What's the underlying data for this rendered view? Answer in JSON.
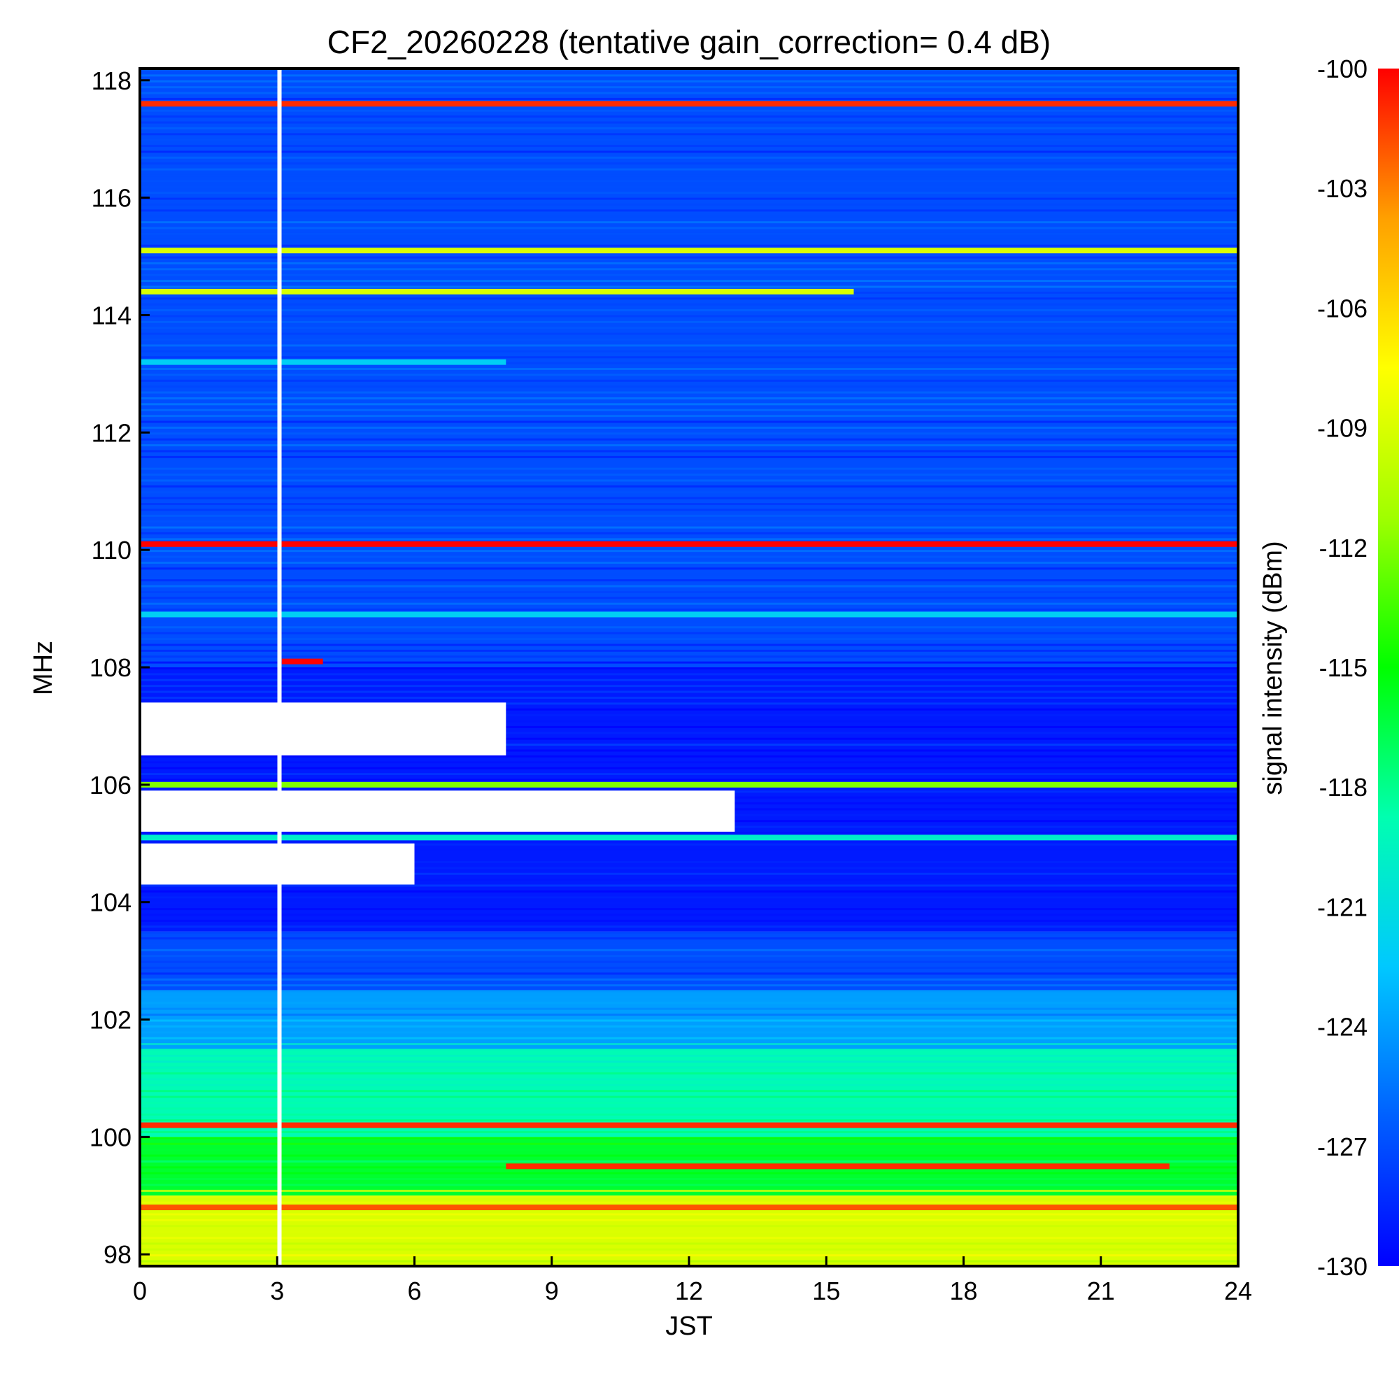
{
  "chart_data": {
    "type": "heatmap",
    "title": "CF2_20260228 (tentative gain_correction=  0.4 dB)",
    "xlabel": "JST",
    "ylabel": "MHz",
    "colorbar_label": "signal intensity (dBm)",
    "xlim": [
      0,
      24
    ],
    "ylim": [
      97.8,
      118.2
    ],
    "clim": [
      -130,
      -100
    ],
    "x_ticks": [
      "0",
      "3",
      "6",
      "9",
      "12",
      "15",
      "18",
      "21",
      "24"
    ],
    "y_ticks": [
      "98",
      "100",
      "102",
      "104",
      "106",
      "108",
      "110",
      "112",
      "114",
      "116",
      "118"
    ],
    "colorbar_ticks": [
      "-100",
      "-103",
      "-106",
      "-109",
      "-112",
      "-115",
      "-118",
      "-121",
      "-124",
      "-127",
      "-130"
    ],
    "colormap": [
      "#0000ff",
      "#0060ff",
      "#00c8ff",
      "#00ffb0",
      "#00ff00",
      "#a0ff00",
      "#ffff00",
      "#ffa000",
      "#ff0000"
    ],
    "background_levels": [
      {
        "mhz_from": 108.0,
        "mhz_to": 118.2,
        "dbm": -127
      },
      {
        "mhz_from": 103.5,
        "mhz_to": 108.0,
        "dbm": -129
      },
      {
        "mhz_from": 102.5,
        "mhz_to": 103.5,
        "dbm": -127
      },
      {
        "mhz_from": 101.5,
        "mhz_to": 102.5,
        "dbm": -124
      },
      {
        "mhz_from": 100.0,
        "mhz_to": 101.5,
        "dbm": -119
      },
      {
        "mhz_from": 99.0,
        "mhz_to": 100.0,
        "dbm": -116
      },
      {
        "mhz_from": 97.8,
        "mhz_to": 99.0,
        "dbm": -109
      }
    ],
    "stations": [
      {
        "mhz": 117.6,
        "dbm": -101,
        "jst_from": 0,
        "jst_to": 24
      },
      {
        "mhz": 115.1,
        "dbm": -109,
        "jst_from": 0,
        "jst_to": 24
      },
      {
        "mhz": 114.4,
        "dbm": -109,
        "jst_from": 0,
        "jst_to": 15.6
      },
      {
        "mhz": 113.2,
        "dbm": -122,
        "jst_from": 0,
        "jst_to": 8
      },
      {
        "mhz": 110.1,
        "dbm": -100,
        "jst_from": 0,
        "jst_to": 24
      },
      {
        "mhz": 108.9,
        "dbm": -122,
        "jst_from": 0,
        "jst_to": 24
      },
      {
        "mhz": 108.1,
        "dbm": -100,
        "jst_from": 3.1,
        "jst_to": 4
      },
      {
        "mhz": 106.0,
        "dbm": -112,
        "jst_from": 0,
        "jst_to": 24
      },
      {
        "mhz": 105.1,
        "dbm": -120,
        "jst_from": 0,
        "jst_to": 24
      },
      {
        "mhz": 100.2,
        "dbm": -101,
        "jst_from": 0,
        "jst_to": 24
      },
      {
        "mhz": 99.5,
        "dbm": -101,
        "jst_from": 8,
        "jst_to": 22.5
      },
      {
        "mhz": 98.8,
        "dbm": -102,
        "jst_from": 0,
        "jst_to": 24
      }
    ],
    "saturated_regions": [
      {
        "mhz_from": 106.5,
        "mhz_to": 107.4,
        "jst_from": 0,
        "jst_to": 8
      },
      {
        "mhz_from": 105.2,
        "mhz_to": 105.9,
        "jst_from": 0,
        "jst_to": 13
      },
      {
        "mhz_from": 104.3,
        "mhz_to": 105.0,
        "jst_from": 0,
        "jst_to": 6
      }
    ],
    "data_gaps": [
      {
        "jst": 3.05
      }
    ]
  }
}
